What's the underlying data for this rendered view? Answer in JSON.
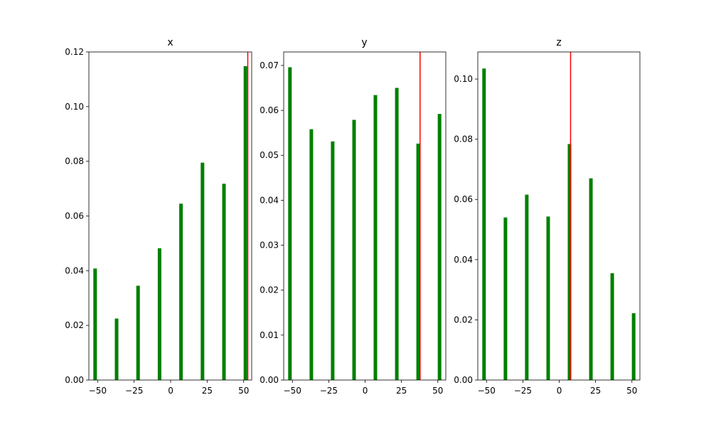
{
  "colors": {
    "bar": "#008000",
    "marker": "#ff0000",
    "axis": "#000000",
    "background": "#ffffff"
  },
  "chart_data": [
    {
      "type": "bar",
      "title": "x",
      "x": [
        -51.7,
        -37.0,
        -22.3,
        -7.6,
        7.1,
        21.8,
        36.5,
        51.2
      ],
      "values": [
        0.0408,
        0.0225,
        0.0345,
        0.0482,
        0.0645,
        0.0795,
        0.0718,
        0.1148
      ],
      "xlim": [
        -56.0,
        55.5
      ],
      "ylim": [
        0,
        0.12
      ],
      "xticks": [
        -50,
        -25,
        0,
        25,
        50
      ],
      "xtick_labels": [
        "−50",
        "−25",
        "0",
        "25",
        "50"
      ],
      "yticks": [
        0,
        0.02,
        0.04,
        0.06,
        0.08,
        0.1,
        0.12
      ],
      "ytick_labels": [
        "0.00",
        "0.02",
        "0.04",
        "0.06",
        "0.08",
        "0.10",
        "0.12"
      ],
      "marker_x": 52.8,
      "bar_color": "#008000",
      "marker_color": "#ff0000"
    },
    {
      "type": "bar",
      "title": "y",
      "x": [
        -51.7,
        -37.0,
        -22.3,
        -7.6,
        7.1,
        21.8,
        36.5,
        51.2
      ],
      "values": [
        0.0696,
        0.0558,
        0.0531,
        0.0579,
        0.0634,
        0.065,
        0.0526,
        0.0592
      ],
      "xlim": [
        -56.0,
        55.5
      ],
      "ylim": [
        0,
        0.073
      ],
      "xticks": [
        -50,
        -25,
        0,
        25,
        50
      ],
      "xtick_labels": [
        "−50",
        "−25",
        "0",
        "25",
        "50"
      ],
      "yticks": [
        0,
        0.01,
        0.02,
        0.03,
        0.04,
        0.05,
        0.06,
        0.07
      ],
      "ytick_labels": [
        "0.00",
        "0.01",
        "0.02",
        "0.03",
        "0.04",
        "0.05",
        "0.06",
        "0.07"
      ],
      "marker_x": 37.8,
      "bar_color": "#008000",
      "marker_color": "#ff0000"
    },
    {
      "type": "bar",
      "title": "z",
      "x": [
        -51.7,
        -37.0,
        -22.3,
        -7.6,
        7.1,
        21.8,
        36.5,
        51.2
      ],
      "values": [
        0.1035,
        0.054,
        0.0616,
        0.0543,
        0.0784,
        0.067,
        0.0355,
        0.0222
      ],
      "xlim": [
        -56.0,
        55.5
      ],
      "ylim": [
        0,
        0.109
      ],
      "xticks": [
        -50,
        -25,
        0,
        25,
        50
      ],
      "xtick_labels": [
        "−50",
        "−25",
        "0",
        "25",
        "50"
      ],
      "yticks": [
        0,
        0.02,
        0.04,
        0.06,
        0.08,
        0.1
      ],
      "ytick_labels": [
        "0.00",
        "0.02",
        "0.04",
        "0.06",
        "0.08",
        "0.10"
      ],
      "marker_x": 7.8,
      "bar_color": "#008000",
      "marker_color": "#ff0000"
    }
  ]
}
